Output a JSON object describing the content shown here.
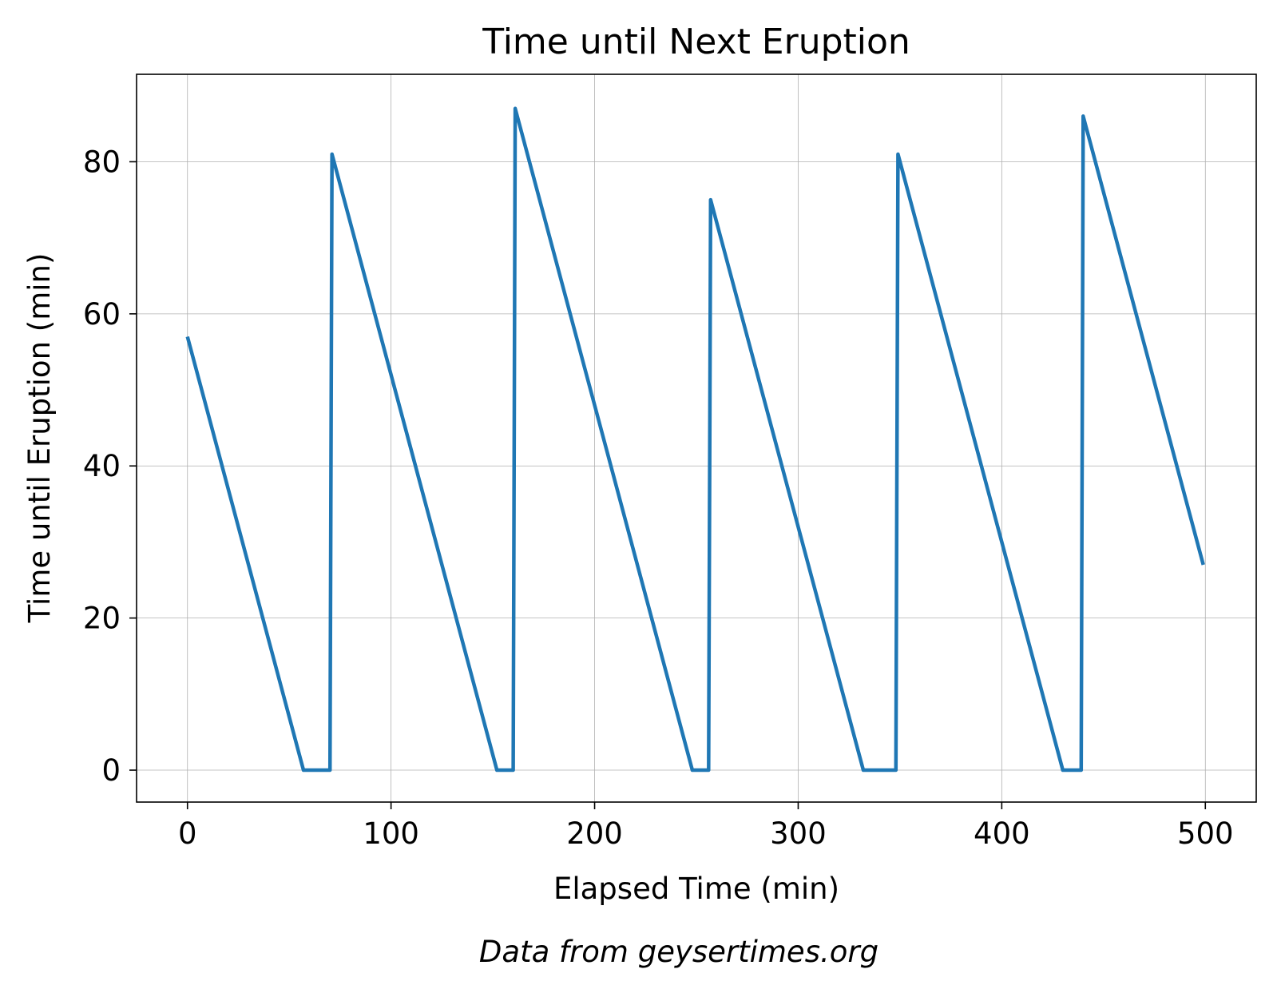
{
  "chart_data": {
    "type": "line",
    "title": "Time until Next Eruption",
    "xlabel": "Elapsed Time (min)",
    "ylabel": "Time until Eruption (min)",
    "caption": "Data from geysertimes.org",
    "xlim": [
      -25,
      525
    ],
    "ylim": [
      -4.2,
      91.5
    ],
    "xticks": [
      0,
      100,
      200,
      300,
      400,
      500
    ],
    "yticks": [
      0,
      20,
      40,
      60,
      80
    ],
    "grid": true,
    "legend": "none",
    "series": [
      {
        "color": "#1f77b4",
        "x": [
          0,
          57,
          70,
          71,
          152,
          160,
          161,
          248,
          256,
          257,
          332,
          348,
          349,
          430,
          439,
          440,
          499
        ],
        "y": [
          57,
          0,
          0,
          81,
          0,
          0,
          87,
          0,
          0,
          75,
          0,
          0,
          81,
          0,
          0,
          86,
          27
        ]
      }
    ]
  }
}
